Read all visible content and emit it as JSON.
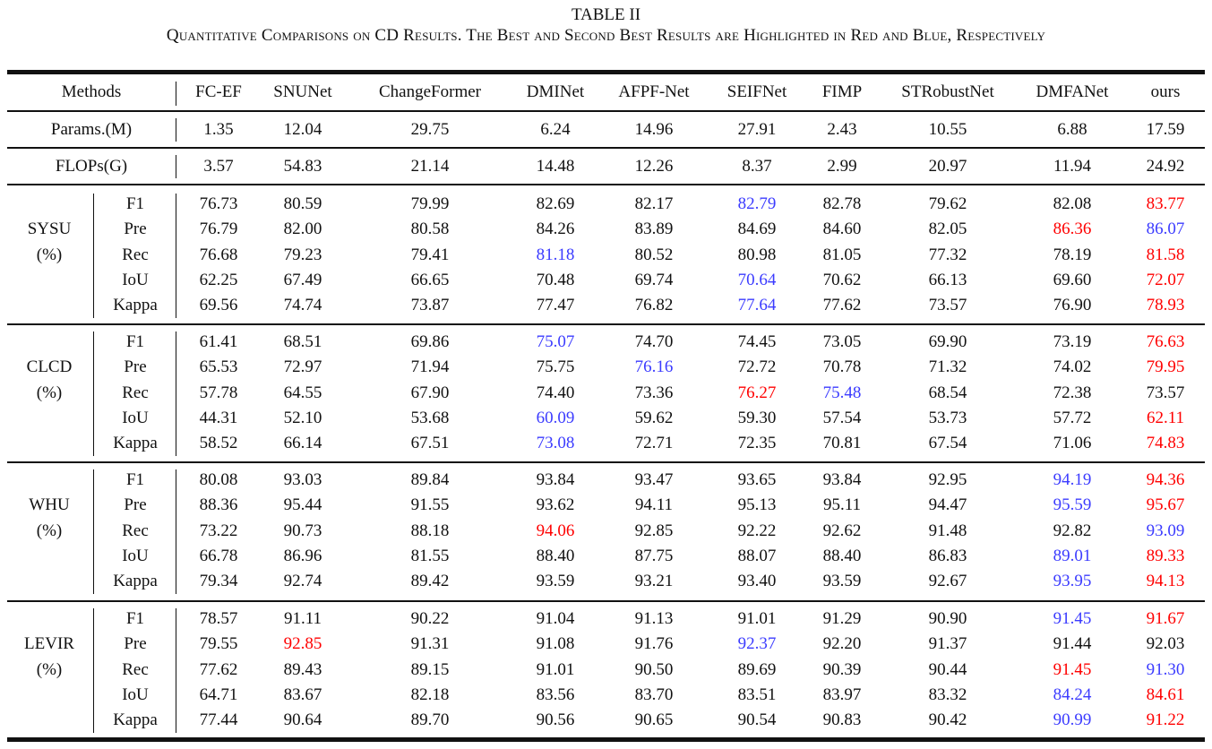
{
  "caption": {
    "label": "TABLE II",
    "text": "Quantitative Comparisons on CD Results. The Best and Second Best Results are Highlighted in Red and Blue, Respectively"
  },
  "colors": {
    "best": "#ff0000",
    "second": "#3b3bff",
    "text": "#111111"
  },
  "header": {
    "methods_label": "Methods",
    "columns": [
      "FC-EF",
      "SNUNet",
      "ChangeFormer",
      "DMINet",
      "AFPF-Net",
      "SEIFNet",
      "FIMP",
      "STRobustNet",
      "DMFANet",
      "ours"
    ]
  },
  "complexity": [
    {
      "label": "Params.(M)",
      "values": [
        "1.35",
        "12.04",
        "29.75",
        "6.24",
        "14.96",
        "27.91",
        "2.43",
        "10.55",
        "6.88",
        "17.59"
      ]
    },
    {
      "label": "FLOPs(G)",
      "values": [
        "3.57",
        "54.83",
        "21.14",
        "14.48",
        "12.26",
        "8.37",
        "2.99",
        "20.97",
        "11.94",
        "24.92"
      ]
    }
  ],
  "datasets": [
    {
      "name": "SYSU",
      "unit": "(%)",
      "rows": [
        {
          "metric": "F1",
          "values": [
            "76.73",
            "80.59",
            "79.99",
            "82.69",
            "82.17",
            "82.79",
            "82.78",
            "79.62",
            "82.08",
            "83.77"
          ],
          "best": 9,
          "second": 5
        },
        {
          "metric": "Pre",
          "values": [
            "76.79",
            "82.00",
            "80.58",
            "84.26",
            "83.89",
            "84.69",
            "84.60",
            "82.05",
            "86.36",
            "86.07"
          ],
          "best": 8,
          "second": 9
        },
        {
          "metric": "Rec",
          "values": [
            "76.68",
            "79.23",
            "79.41",
            "81.18",
            "80.52",
            "80.98",
            "81.05",
            "77.32",
            "78.19",
            "81.58"
          ],
          "best": 9,
          "second": 3
        },
        {
          "metric": "IoU",
          "values": [
            "62.25",
            "67.49",
            "66.65",
            "70.48",
            "69.74",
            "70.64",
            "70.62",
            "66.13",
            "69.60",
            "72.07"
          ],
          "best": 9,
          "second": 5
        },
        {
          "metric": "Kappa",
          "values": [
            "69.56",
            "74.74",
            "73.87",
            "77.47",
            "76.82",
            "77.64",
            "77.62",
            "73.57",
            "76.90",
            "78.93"
          ],
          "best": 9,
          "second": 5
        }
      ]
    },
    {
      "name": "CLCD",
      "unit": "(%)",
      "rows": [
        {
          "metric": "F1",
          "values": [
            "61.41",
            "68.51",
            "69.86",
            "75.07",
            "74.70",
            "74.45",
            "73.05",
            "69.90",
            "73.19",
            "76.63"
          ],
          "best": 9,
          "second": 3
        },
        {
          "metric": "Pre",
          "values": [
            "65.53",
            "72.97",
            "71.94",
            "75.75",
            "76.16",
            "72.72",
            "70.78",
            "71.32",
            "74.02",
            "79.95"
          ],
          "best": 9,
          "second": 4
        },
        {
          "metric": "Rec",
          "values": [
            "57.78",
            "64.55",
            "67.90",
            "74.40",
            "73.36",
            "76.27",
            "75.48",
            "68.54",
            "72.38",
            "73.57"
          ],
          "best": 5,
          "second": 6
        },
        {
          "metric": "IoU",
          "values": [
            "44.31",
            "52.10",
            "53.68",
            "60.09",
            "59.62",
            "59.30",
            "57.54",
            "53.73",
            "57.72",
            "62.11"
          ],
          "best": 9,
          "second": 3
        },
        {
          "metric": "Kappa",
          "values": [
            "58.52",
            "66.14",
            "67.51",
            "73.08",
            "72.71",
            "72.35",
            "70.81",
            "67.54",
            "71.06",
            "74.83"
          ],
          "best": 9,
          "second": 3
        }
      ]
    },
    {
      "name": "WHU",
      "unit": "(%)",
      "rows": [
        {
          "metric": "F1",
          "values": [
            "80.08",
            "93.03",
            "89.84",
            "93.84",
            "93.47",
            "93.65",
            "93.84",
            "92.95",
            "94.19",
            "94.36"
          ],
          "best": 9,
          "second": 8
        },
        {
          "metric": "Pre",
          "values": [
            "88.36",
            "95.44",
            "91.55",
            "93.62",
            "94.11",
            "95.13",
            "95.11",
            "94.47",
            "95.59",
            "95.67"
          ],
          "best": 9,
          "second": 8
        },
        {
          "metric": "Rec",
          "values": [
            "73.22",
            "90.73",
            "88.18",
            "94.06",
            "92.85",
            "92.22",
            "92.62",
            "91.48",
            "92.82",
            "93.09"
          ],
          "best": 3,
          "second": 9
        },
        {
          "metric": "IoU",
          "values": [
            "66.78",
            "86.96",
            "81.55",
            "88.40",
            "87.75",
            "88.07",
            "88.40",
            "86.83",
            "89.01",
            "89.33"
          ],
          "best": 9,
          "second": 8
        },
        {
          "metric": "Kappa",
          "values": [
            "79.34",
            "92.74",
            "89.42",
            "93.59",
            "93.21",
            "93.40",
            "93.59",
            "92.67",
            "93.95",
            "94.13"
          ],
          "best": 9,
          "second": 8
        }
      ]
    },
    {
      "name": "LEVIR",
      "unit": "(%)",
      "rows": [
        {
          "metric": "F1",
          "values": [
            "78.57",
            "91.11",
            "90.22",
            "91.04",
            "91.13",
            "91.01",
            "91.29",
            "90.90",
            "91.45",
            "91.67"
          ],
          "best": 9,
          "second": 8
        },
        {
          "metric": "Pre",
          "values": [
            "79.55",
            "92.85",
            "91.31",
            "91.08",
            "91.76",
            "92.37",
            "92.20",
            "91.37",
            "91.44",
            "92.03"
          ],
          "best": 1,
          "second": 5
        },
        {
          "metric": "Rec",
          "values": [
            "77.62",
            "89.43",
            "89.15",
            "91.01",
            "90.50",
            "89.69",
            "90.39",
            "90.44",
            "91.45",
            "91.30"
          ],
          "best": 8,
          "second": 9
        },
        {
          "metric": "IoU",
          "values": [
            "64.71",
            "83.67",
            "82.18",
            "83.56",
            "83.70",
            "83.51",
            "83.97",
            "83.32",
            "84.24",
            "84.61"
          ],
          "best": 9,
          "second": 8
        },
        {
          "metric": "Kappa",
          "values": [
            "77.44",
            "90.64",
            "89.70",
            "90.56",
            "90.65",
            "90.54",
            "90.83",
            "90.42",
            "90.99",
            "91.22"
          ],
          "best": 9,
          "second": 8
        }
      ]
    }
  ]
}
